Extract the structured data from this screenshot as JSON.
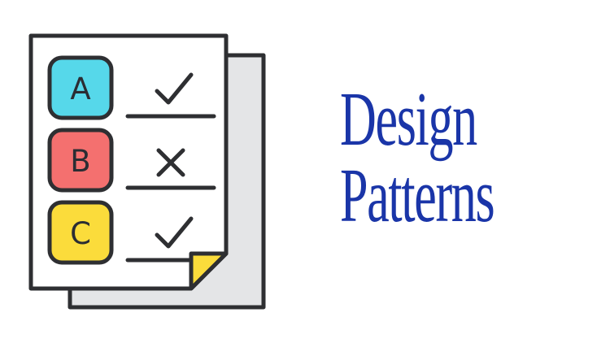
{
  "title": {
    "line1": "Design",
    "line2": "Patterns"
  },
  "quiz": {
    "options": [
      {
        "letter": "A",
        "color": "#56d8ea",
        "mark": "check-icon"
      },
      {
        "letter": "B",
        "color": "#f4706f",
        "mark": "cross-icon"
      },
      {
        "letter": "C",
        "color": "#fbdc3b",
        "mark": "check-icon"
      }
    ],
    "outline_color": "#2e2f32",
    "corner_fold_color": "#fbdc3b",
    "back_sheet_color": "#e4e5e7"
  },
  "colors": {
    "title": "#1a35a8",
    "background": "#ffffff"
  }
}
